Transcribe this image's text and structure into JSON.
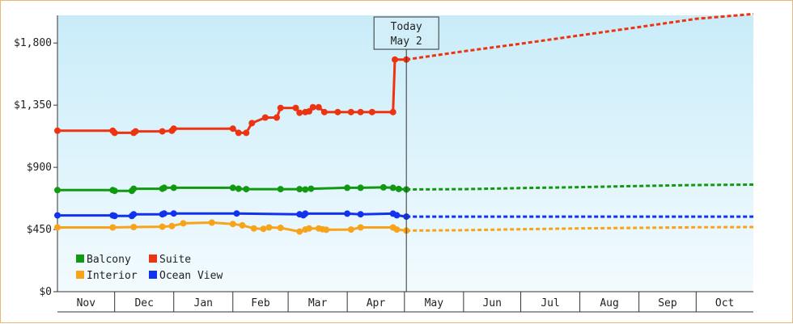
{
  "chart_data": {
    "type": "line",
    "title": "",
    "xlabel": "",
    "ylabel": "",
    "ylim": [
      0,
      2000
    ],
    "y_ticks": [
      {
        "value": 0,
        "label": "$0"
      },
      {
        "value": 450,
        "label": "$450"
      },
      {
        "value": 900,
        "label": "$900"
      },
      {
        "value": 1350,
        "label": "$1,350"
      },
      {
        "value": 1800,
        "label": "$1,800"
      }
    ],
    "x_domain": [
      "2023-11-01",
      "2024-10-31"
    ],
    "months": [
      {
        "label": "Nov",
        "start": "2023-11-01",
        "end": "2023-12-01"
      },
      {
        "label": "Dec",
        "start": "2023-12-01",
        "end": "2024-01-01"
      },
      {
        "label": "Jan",
        "start": "2024-01-01",
        "end": "2024-02-01"
      },
      {
        "label": "Feb",
        "start": "2024-02-01",
        "end": "2024-03-01"
      },
      {
        "label": "Mar",
        "start": "2024-03-01",
        "end": "2024-04-01"
      },
      {
        "label": "Apr",
        "start": "2024-04-01",
        "end": "2024-05-01"
      },
      {
        "label": "May",
        "start": "2024-05-01",
        "end": "2024-06-01"
      },
      {
        "label": "Jun",
        "start": "2024-06-01",
        "end": "2024-07-01"
      },
      {
        "label": "Jul",
        "start": "2024-07-01",
        "end": "2024-08-01"
      },
      {
        "label": "Aug",
        "start": "2024-08-01",
        "end": "2024-09-01"
      },
      {
        "label": "Sep",
        "start": "2024-09-01",
        "end": "2024-10-01"
      },
      {
        "label": "Oct",
        "start": "2024-10-01",
        "end": "2024-11-01"
      }
    ],
    "today": {
      "date": "2024-05-02",
      "line1": "Today",
      "line2": "May 2"
    },
    "grid": false,
    "legend_position": "bottom-left",
    "series": [
      {
        "name": "Balcony",
        "color": "#119911",
        "history": [
          [
            "2023-11-01",
            735
          ],
          [
            "2023-11-30",
            735
          ],
          [
            "2023-12-01",
            730
          ],
          [
            "2023-12-10",
            730
          ],
          [
            "2023-12-11",
            745
          ],
          [
            "2023-12-26",
            745
          ],
          [
            "2023-12-27",
            752
          ],
          [
            "2024-01-01",
            752
          ],
          [
            "2024-02-01",
            752
          ],
          [
            "2024-02-04",
            745
          ],
          [
            "2024-02-08",
            742
          ],
          [
            "2024-02-26",
            742
          ],
          [
            "2024-03-07",
            742
          ],
          [
            "2024-03-10",
            740
          ],
          [
            "2024-03-13",
            745
          ],
          [
            "2024-04-01",
            752
          ],
          [
            "2024-04-08",
            752
          ],
          [
            "2024-04-20",
            755
          ],
          [
            "2024-04-25",
            752
          ],
          [
            "2024-04-28",
            743
          ],
          [
            "2024-05-02",
            740
          ]
        ],
        "projection": [
          [
            "2024-05-02",
            740
          ],
          [
            "2024-06-01",
            742
          ],
          [
            "2024-07-01",
            750
          ],
          [
            "2024-08-01",
            757
          ],
          [
            "2024-09-01",
            765
          ],
          [
            "2024-10-01",
            772
          ],
          [
            "2024-10-31",
            775
          ]
        ]
      },
      {
        "name": "Suite",
        "color": "#ee3311",
        "history": [
          [
            "2023-11-01",
            1165
          ],
          [
            "2023-11-30",
            1165
          ],
          [
            "2023-12-01",
            1150
          ],
          [
            "2023-12-11",
            1150
          ],
          [
            "2023-12-12",
            1160
          ],
          [
            "2023-12-26",
            1160
          ],
          [
            "2023-12-31",
            1165
          ],
          [
            "2024-01-01",
            1180
          ],
          [
            "2024-02-01",
            1180
          ],
          [
            "2024-02-04",
            1150
          ],
          [
            "2024-02-08",
            1150
          ],
          [
            "2024-02-11",
            1220
          ],
          [
            "2024-02-18",
            1260
          ],
          [
            "2024-02-24",
            1260
          ],
          [
            "2024-02-26",
            1330
          ],
          [
            "2024-03-05",
            1330
          ],
          [
            "2024-03-07",
            1295
          ],
          [
            "2024-03-10",
            1300
          ],
          [
            "2024-03-12",
            1305
          ],
          [
            "2024-03-14",
            1335
          ],
          [
            "2024-03-17",
            1335
          ],
          [
            "2024-03-20",
            1300
          ],
          [
            "2024-03-27",
            1300
          ],
          [
            "2024-04-03",
            1300
          ],
          [
            "2024-04-08",
            1300
          ],
          [
            "2024-04-14",
            1300
          ],
          [
            "2024-04-25",
            1300
          ],
          [
            "2024-04-26",
            1680
          ],
          [
            "2024-05-02",
            1680
          ]
        ],
        "projection": [
          [
            "2024-05-02",
            1680
          ],
          [
            "2024-06-01",
            1740
          ],
          [
            "2024-07-01",
            1795
          ],
          [
            "2024-08-01",
            1855
          ],
          [
            "2024-09-01",
            1915
          ],
          [
            "2024-10-01",
            1975
          ],
          [
            "2024-10-31",
            2010
          ]
        ]
      },
      {
        "name": "Interior",
        "color": "#f7a41b",
        "history": [
          [
            "2023-11-01",
            465
          ],
          [
            "2023-11-30",
            465
          ],
          [
            "2023-12-11",
            468
          ],
          [
            "2023-12-26",
            470
          ],
          [
            "2023-12-31",
            475
          ],
          [
            "2024-01-06",
            495
          ],
          [
            "2024-01-21",
            500
          ],
          [
            "2024-02-01",
            490
          ],
          [
            "2024-02-06",
            480
          ],
          [
            "2024-02-12",
            458
          ],
          [
            "2024-02-17",
            455
          ],
          [
            "2024-02-20",
            465
          ],
          [
            "2024-02-26",
            462
          ],
          [
            "2024-03-07",
            435
          ],
          [
            "2024-03-10",
            450
          ],
          [
            "2024-03-12",
            458
          ],
          [
            "2024-03-17",
            458
          ],
          [
            "2024-03-19",
            452
          ],
          [
            "2024-03-21",
            448
          ],
          [
            "2024-04-03",
            450
          ],
          [
            "2024-04-08",
            465
          ],
          [
            "2024-04-25",
            465
          ],
          [
            "2024-04-27",
            450
          ],
          [
            "2024-05-02",
            442
          ]
        ],
        "projection": [
          [
            "2024-05-02",
            442
          ],
          [
            "2024-06-01",
            445
          ],
          [
            "2024-07-01",
            452
          ],
          [
            "2024-08-01",
            458
          ],
          [
            "2024-09-01",
            462
          ],
          [
            "2024-10-01",
            466
          ],
          [
            "2024-10-31",
            468
          ]
        ]
      },
      {
        "name": "Ocean View",
        "color": "#1133ee",
        "history": [
          [
            "2023-11-01",
            552
          ],
          [
            "2023-11-30",
            552
          ],
          [
            "2023-12-01",
            548
          ],
          [
            "2023-12-10",
            548
          ],
          [
            "2023-12-11",
            560
          ],
          [
            "2023-12-26",
            560
          ],
          [
            "2023-12-27",
            566
          ],
          [
            "2024-01-01",
            566
          ],
          [
            "2024-02-03",
            566
          ],
          [
            "2024-03-07",
            560
          ],
          [
            "2024-03-09",
            553
          ],
          [
            "2024-03-10",
            565
          ],
          [
            "2024-04-01",
            565
          ],
          [
            "2024-04-08",
            560
          ],
          [
            "2024-04-25",
            565
          ],
          [
            "2024-04-27",
            553
          ],
          [
            "2024-05-02",
            543
          ]
        ],
        "projection": [
          [
            "2024-05-02",
            543
          ],
          [
            "2024-07-01",
            543
          ],
          [
            "2024-10-31",
            543
          ]
        ]
      }
    ]
  }
}
